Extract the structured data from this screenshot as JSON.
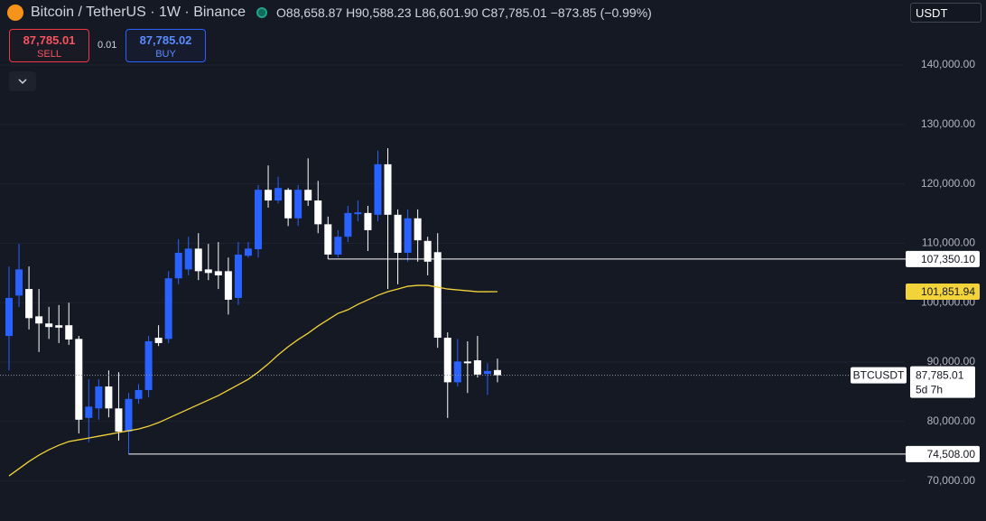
{
  "chart_data": {
    "type": "candlestick",
    "up_color": "#2962ff",
    "down_color": "#ffffff",
    "open": [
      94400,
      101200,
      102300,
      97700,
      96500,
      96200,
      96200,
      93900,
      80600,
      82200,
      85900,
      82200,
      78300,
      83800,
      85300,
      94100,
      93900,
      104100,
      105600,
      109100,
      105600,
      105300,
      105300,
      100800,
      107900,
      109000,
      119000,
      117200,
      119000,
      114200,
      119000,
      117200,
      113200,
      108100,
      111100,
      114900,
      115100,
      114800,
      123300,
      114800,
      108400,
      114200,
      110400,
      108500,
      94100,
      86600,
      90100,
      90300,
      88000,
      88658.87
    ],
    "high": [
      106100,
      109900,
      106100,
      102300,
      99300,
      99600,
      100000,
      94400,
      87100,
      87100,
      88600,
      88300,
      84800,
      86300,
      94400,
      96200,
      105300,
      110700,
      111100,
      111700,
      109900,
      110200,
      107600,
      110200,
      110200,
      119800,
      123100,
      121200,
      119300,
      119800,
      124300,
      120500,
      114500,
      112200,
      116300,
      117200,
      116300,
      125600,
      126000,
      115700,
      115700,
      115700,
      111100,
      111700,
      95000,
      93900,
      93500,
      94400,
      89800,
      90588.23
    ],
    "low": [
      88600,
      99300,
      95500,
      91700,
      93900,
      93200,
      92900,
      78000,
      76500,
      80300,
      80700,
      76800,
      74508,
      83000,
      84100,
      92700,
      93200,
      103100,
      104600,
      103800,
      103800,
      102300,
      98000,
      99600,
      107600,
      107600,
      116000,
      116700,
      112900,
      112900,
      116300,
      111700,
      107350.1,
      107600,
      110200,
      113700,
      108700,
      113700,
      102300,
      103100,
      106900,
      106900,
      104600,
      92400,
      80600,
      85900,
      84800,
      87400,
      84500,
      86601.9
    ],
    "close": [
      100800,
      105600,
      97400,
      96500,
      95900,
      95800,
      93800,
      80300,
      82500,
      85900,
      82200,
      78300,
      83800,
      85300,
      93500,
      93200,
      104100,
      108400,
      109100,
      105300,
      105000,
      104600,
      100500,
      108100,
      109100,
      119000,
      117200,
      119300,
      114200,
      119000,
      117200,
      113200,
      108100,
      111100,
      115100,
      115200,
      112200,
      123300,
      114800,
      108400,
      114200,
      110500,
      106900,
      94100,
      86600,
      90100,
      89800,
      87900,
      88500,
      87785.01
    ],
    "last_label": "87,785.01",
    "symbol_tag": "BTCUSDT",
    "countdown": "5d 7h",
    "ma": {
      "color": "#f2d33a",
      "last_label": "101,851.94",
      "values": [
        70840,
        72060,
        73270,
        74340,
        75250,
        76010,
        76620,
        76920,
        77220,
        77530,
        77830,
        78140,
        78440,
        78740,
        79200,
        79810,
        80570,
        81330,
        82090,
        82850,
        83610,
        84370,
        85280,
        86190,
        87100,
        88320,
        89690,
        91210,
        92580,
        93790,
        94860,
        96070,
        97140,
        98200,
        98810,
        99720,
        100480,
        101240,
        101850,
        102300,
        102760,
        102910,
        102910,
        102610,
        102300,
        102150,
        102000,
        101850,
        101850,
        101851.94
      ]
    },
    "levels": [
      {
        "value": 107350.1,
        "label": "107,350.10"
      },
      {
        "value": 74508,
        "label": "74,508.00"
      }
    ],
    "ylim": [
      63250,
      150950
    ],
    "yticks": [
      {
        "value": 70000,
        "label": "70,000.00"
      },
      {
        "value": 80000,
        "label": "80,000.00"
      },
      {
        "value": 90000,
        "label": "90,000.00"
      },
      {
        "value": 100000,
        "label": "100,000.00"
      },
      {
        "value": 110000,
        "label": "110,000.00"
      },
      {
        "value": 120000,
        "label": "120,000.00"
      },
      {
        "value": 130000,
        "label": "130,000.00"
      },
      {
        "value": 140000,
        "label": "140,000.00"
      }
    ],
    "grid": true
  },
  "ui": {
    "title": "Bitcoin / TetherUS · 1W · Binance",
    "ohlc": [
      {
        "key": "O",
        "text": "88,658.87"
      },
      {
        "key": "H",
        "text": "90,588.23"
      },
      {
        "key": "L",
        "text": "86,601.90"
      },
      {
        "key": "C",
        "text": "87,785.01"
      }
    ],
    "change": "−873.85 (−0.99%)",
    "sell": {
      "price": "87,785.01",
      "text": "SELL"
    },
    "spread": "0.01",
    "buy": {
      "price": "87,785.02",
      "text": "BUY"
    },
    "currency": "USDT"
  }
}
